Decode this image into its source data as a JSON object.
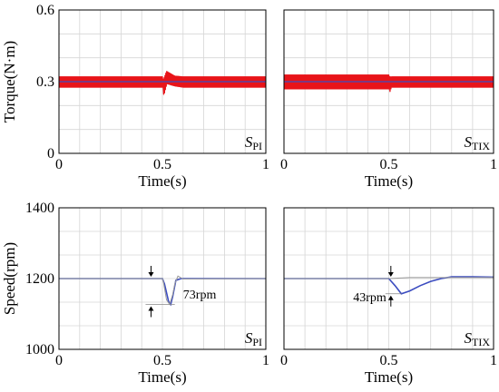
{
  "chart_data": [
    {
      "type": "line",
      "panel": "torque-pi",
      "corner_label": "S",
      "corner_sub": "PI",
      "ylabel": "Torque(N·m)",
      "xlabel": "Time(s)",
      "xlim": [
        0,
        1
      ],
      "ylim": [
        0,
        0.6
      ],
      "x_ticks": [
        "0",
        "0.5",
        "1"
      ],
      "y_ticks": [
        "0",
        "0.3",
        "0.6"
      ],
      "grid": true,
      "series": [
        {
          "color": "#e8141a",
          "ripple_band": {
            "x": [
              0,
              0.5,
              0.505,
              0.52,
              0.54,
              0.56,
              0.6,
              1.0
            ],
            "upper": [
              0.322,
              0.322,
              0.31,
              0.345,
              0.335,
              0.325,
              0.322,
              0.322
            ],
            "lower": [
              0.275,
              0.275,
              0.24,
              0.29,
              0.285,
              0.28,
              0.275,
              0.275
            ]
          }
        },
        {
          "color": "#3b4cc0",
          "mean": {
            "x": [
              0,
              1
            ],
            "y": [
              0.3,
              0.3
            ]
          }
        }
      ]
    },
    {
      "type": "line",
      "panel": "torque-tix",
      "corner_label": "S",
      "corner_sub": "TIX",
      "ylabel": "",
      "xlabel": "Time(s)",
      "xlim": [
        0,
        1
      ],
      "ylim": [
        0,
        0.6
      ],
      "x_ticks": [
        "0",
        "0.5",
        "1"
      ],
      "y_ticks": [],
      "grid": true,
      "series": [
        {
          "color": "#e8141a",
          "ripple_band": {
            "x": [
              0,
              0.5,
              0.505,
              0.51,
              0.53,
              1.0
            ],
            "upper": [
              0.33,
              0.33,
              0.322,
              0.322,
              0.322,
              0.322
            ],
            "lower": [
              0.268,
              0.268,
              0.255,
              0.275,
              0.275,
              0.275
            ]
          }
        },
        {
          "color": "#3b4cc0",
          "mean": {
            "x": [
              0,
              1
            ],
            "y": [
              0.3,
              0.3
            ]
          }
        }
      ]
    },
    {
      "type": "line",
      "panel": "speed-pi",
      "corner_label": "S",
      "corner_sub": "PI",
      "ylabel": "Speed(rpm)",
      "xlabel": "Time(s)",
      "xlim": [
        0,
        1
      ],
      "ylim": [
        1000,
        1400
      ],
      "x_ticks": [
        "0",
        "0.5",
        "1"
      ],
      "y_ticks": [
        "1000",
        "1200",
        "1400"
      ],
      "grid": true,
      "annotation": "73rpm",
      "annotation_dip": 1127,
      "annotation_x": 0.445,
      "series": [
        {
          "color": "#3b4cc0",
          "x": [
            0,
            0.5,
            0.51,
            0.52,
            0.53,
            0.54,
            0.55,
            0.565,
            0.59,
            1.0
          ],
          "y": [
            1200,
            1200,
            1185,
            1160,
            1135,
            1127,
            1150,
            1195,
            1200,
            1200
          ]
        },
        {
          "color": "#999999",
          "x": [
            0,
            0.5,
            0.505,
            0.52,
            0.535,
            0.55,
            0.56,
            0.575,
            0.6,
            1.0
          ],
          "y": [
            1200,
            1200,
            1190,
            1140,
            1127,
            1155,
            1185,
            1207,
            1199,
            1200
          ]
        }
      ]
    },
    {
      "type": "line",
      "panel": "speed-tix",
      "corner_label": "S",
      "corner_sub": "TIX",
      "ylabel": "",
      "xlabel": "Time(s)",
      "xlim": [
        0,
        1
      ],
      "ylim": [
        1000,
        1400
      ],
      "x_ticks": [
        "0",
        "0.5",
        "1"
      ],
      "y_ticks": [],
      "grid": true,
      "annotation": "43rpm",
      "annotation_dip": 1157,
      "annotation_x": 0.51,
      "series": [
        {
          "color": "#3b4cc0",
          "x": [
            0,
            0.5,
            0.53,
            0.56,
            0.6,
            0.65,
            0.7,
            0.75,
            0.8,
            0.9,
            1.0
          ],
          "y": [
            1200,
            1200,
            1180,
            1157,
            1165,
            1180,
            1192,
            1200,
            1205,
            1205,
            1204
          ]
        },
        {
          "color": "#999999",
          "x": [
            0,
            0.5,
            0.6,
            1.0
          ],
          "y": [
            1200,
            1200,
            1203,
            1203
          ]
        }
      ]
    }
  ]
}
